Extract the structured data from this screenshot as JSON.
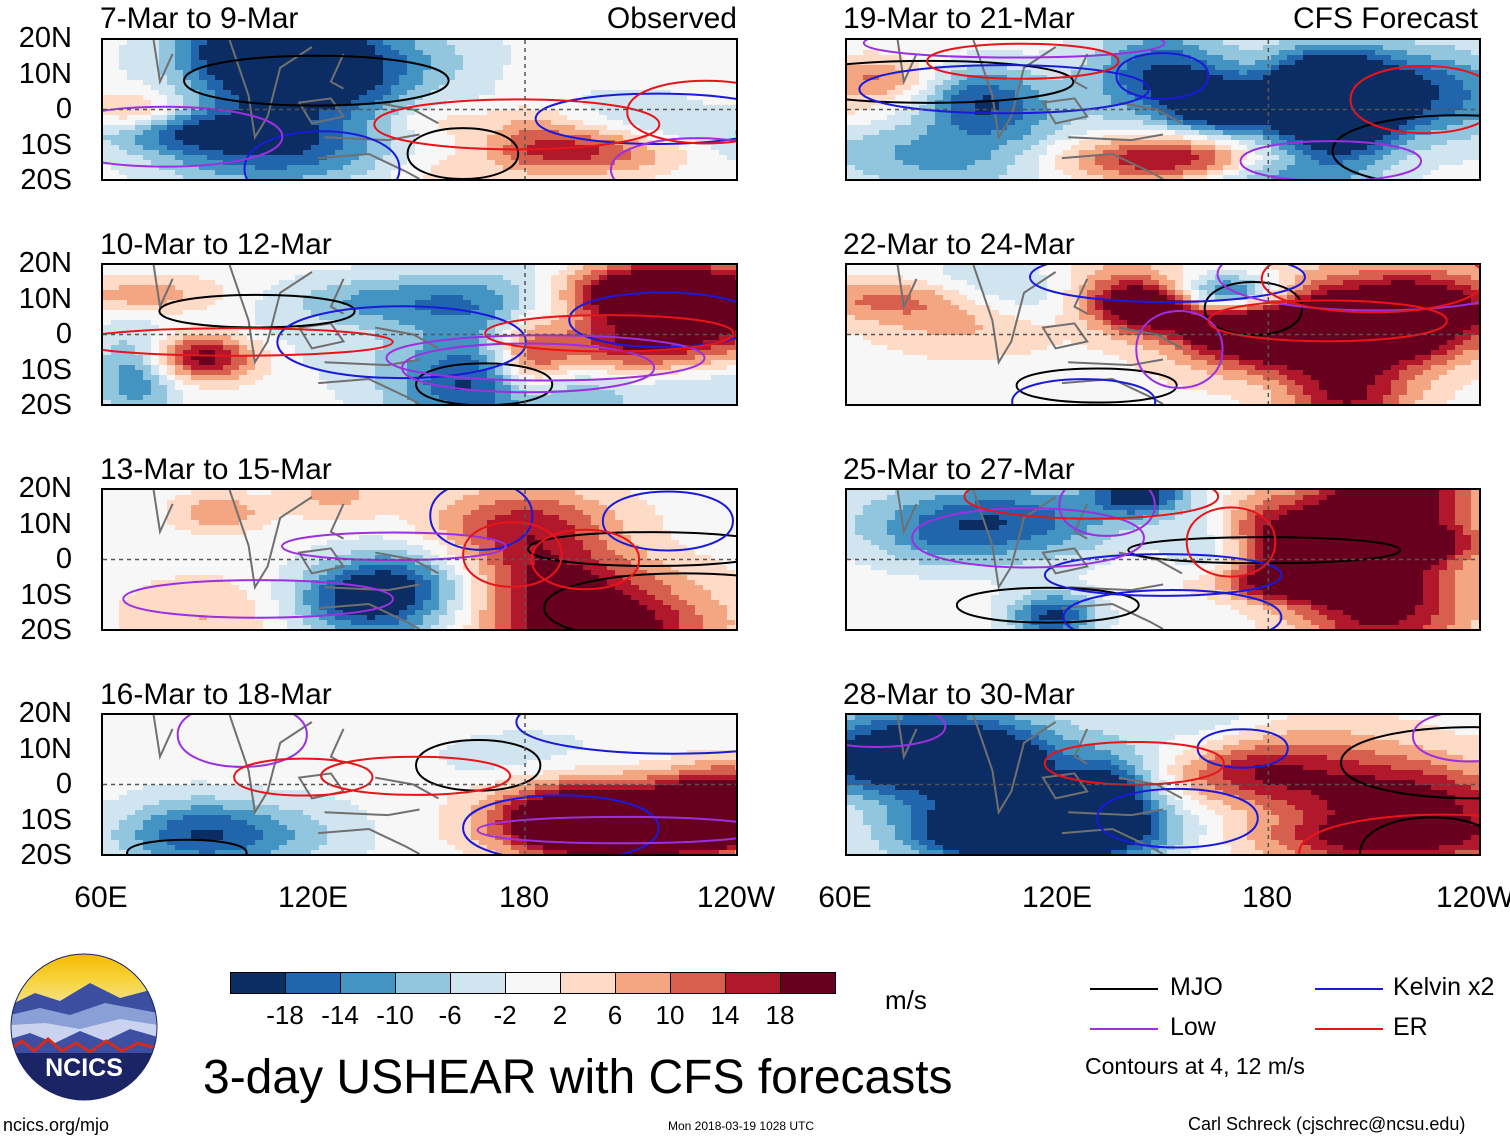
{
  "chart_data": {
    "type": "heatmap",
    "title": "3-day USHEAR with CFS forecasts",
    "variable": "USHEAR",
    "units": "m/s",
    "colorbar": {
      "ticks": [
        "-18",
        "-14",
        "-10",
        "-6",
        "-2",
        "2",
        "6",
        "10",
        "14",
        "18"
      ],
      "colors": [
        "#0b2d63",
        "#2166ac",
        "#4393c3",
        "#92c5de",
        "#d1e5f0",
        "#f7f7f7",
        "#fddbc7",
        "#f4a582",
        "#d6604d",
        "#b2182b",
        "#67001f"
      ]
    },
    "x_ticks": [
      "60E",
      "120E",
      "180",
      "120W"
    ],
    "y_ticks": [
      "20N",
      "10N",
      "0",
      "10S",
      "20S"
    ],
    "x_range_deg_east": [
      60,
      240
    ],
    "y_range_deg_lat": [
      -20,
      20
    ],
    "columns": [
      {
        "label": "Observed",
        "panels": [
          {
            "period": "7-Mar to 9-Mar"
          },
          {
            "period": "10-Mar to 12-Mar"
          },
          {
            "period": "13-Mar to 15-Mar"
          },
          {
            "period": "16-Mar to 18-Mar"
          }
        ]
      },
      {
        "label": "CFS Forecast",
        "panels": [
          {
            "period": "19-Mar to 21-Mar"
          },
          {
            "period": "22-Mar to 24-Mar"
          },
          {
            "period": "25-Mar to 27-Mar"
          },
          {
            "period": "28-Mar to 30-Mar"
          }
        ]
      }
    ],
    "legend": [
      {
        "name": "MJO",
        "color": "#000000"
      },
      {
        "name": "Kelvin x2",
        "color": "#1a1adb"
      },
      {
        "name": "Low",
        "color": "#9b30e0"
      },
      {
        "name": "ER",
        "color": "#e8141a"
      }
    ],
    "contour_note": "Contours at 4, 12 m/s"
  },
  "footer": {
    "logo_text": "NCICS",
    "site": "ncics.org/mjo",
    "timestamp": "Mon 2018-03-19 1028 UTC",
    "author": "Carl Schreck (cjschrec@ncsu.edu)"
  }
}
